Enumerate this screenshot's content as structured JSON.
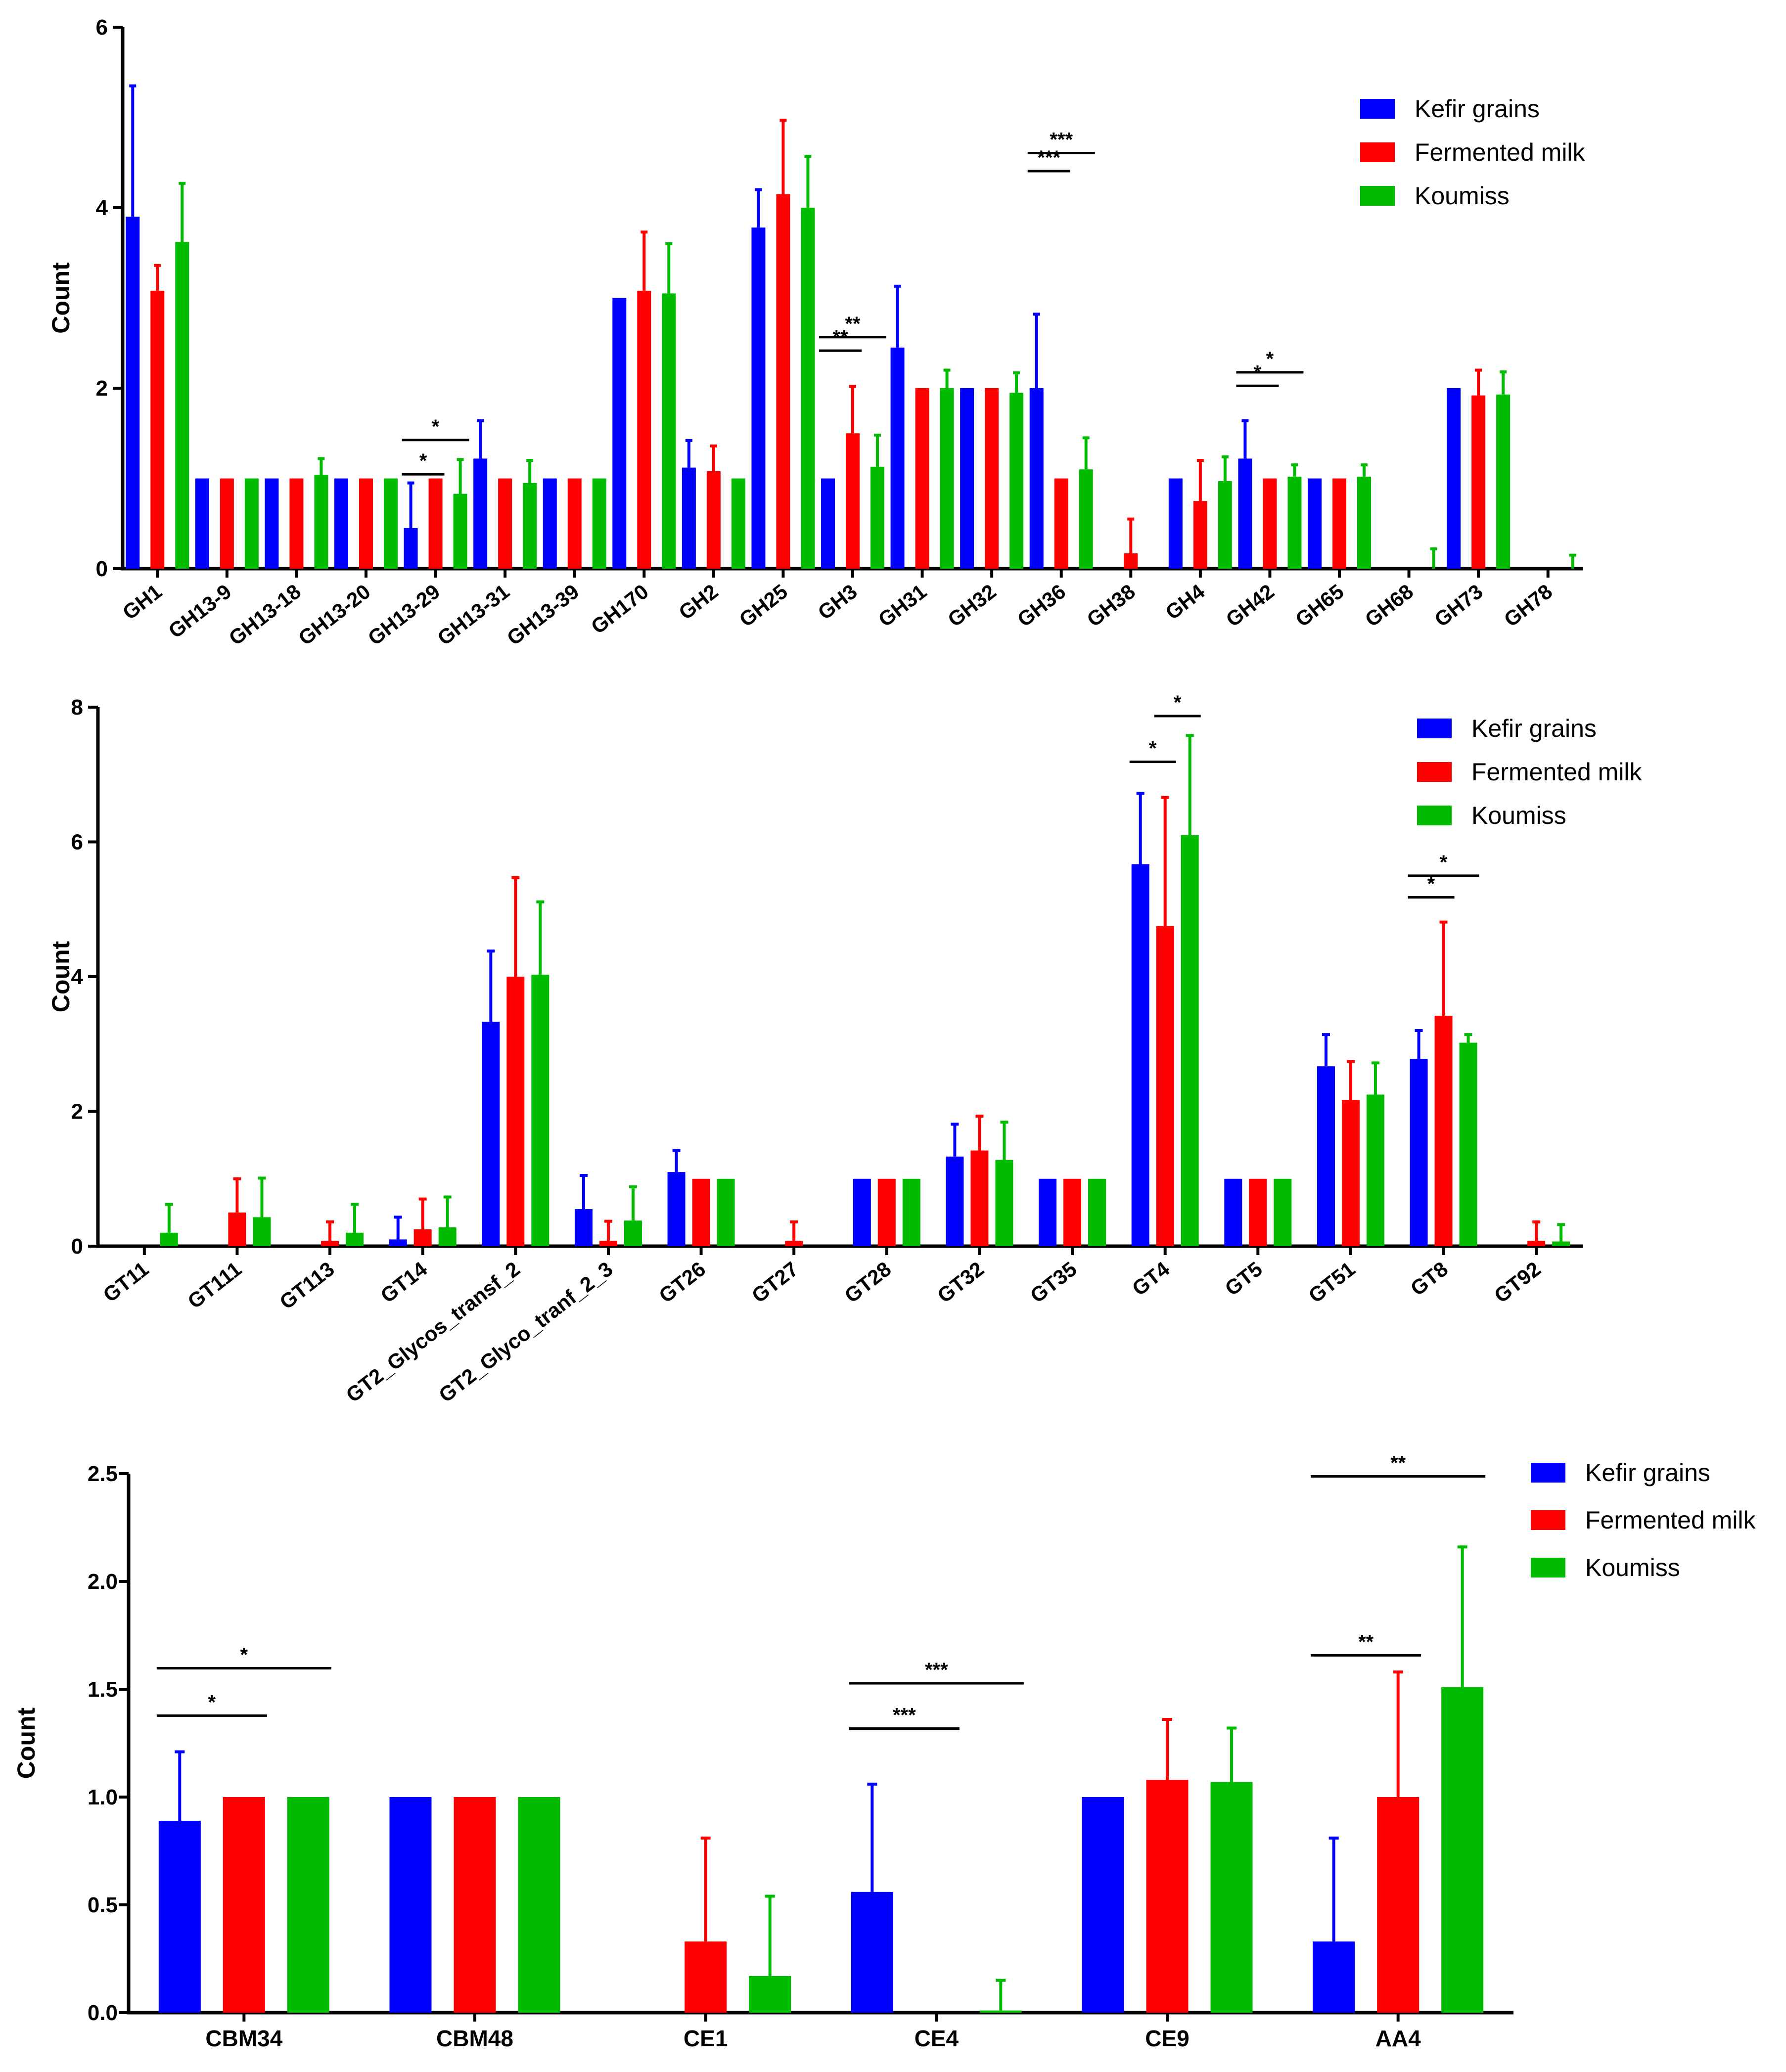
{
  "colors": {
    "Kefir grains": "#0000ff",
    "Fermented milk": "#ff0000",
    "Koumiss": "#00bb00"
  },
  "chart_data": [
    {
      "type": "bar",
      "title": "",
      "xlabel": "",
      "ylabel": "Count",
      "ylim": [
        0,
        6
      ],
      "yticks": [
        "0",
        "2",
        "4",
        "6"
      ],
      "legend_position": "top-right",
      "categories": [
        "GH1",
        "GH13-9",
        "GH13-18",
        "GH13-20",
        "GH13-29",
        "GH13-31",
        "GH13-39",
        "GH170",
        "GH2",
        "GH25",
        "GH3",
        "GH31",
        "GH32",
        "GH36",
        "GH38",
        "GH4",
        "GH42",
        "GH65",
        "GH68",
        "GH73",
        "GH78"
      ],
      "series": [
        {
          "name": "Kefir grains",
          "values": [
            3.9,
            1,
            1,
            1,
            0.45,
            1.22,
            1,
            3,
            1.12,
            3.78,
            1,
            2.45,
            2,
            2,
            0,
            1,
            1.22,
            1,
            0,
            2,
            0
          ],
          "errors": [
            1.45,
            0,
            0,
            0,
            0.5,
            0.42,
            0,
            0,
            0.3,
            0.42,
            0,
            0.68,
            0,
            0.82,
            0,
            0,
            0.42,
            0,
            0,
            0,
            0
          ]
        },
        {
          "name": "Fermented milk",
          "values": [
            3.08,
            1,
            1,
            1,
            1,
            1,
            1,
            3.08,
            1.08,
            4.15,
            1.5,
            2,
            2,
            1,
            0.17,
            0.75,
            1,
            1,
            0,
            1.92,
            0
          ],
          "errors": [
            0.28,
            0,
            0,
            0,
            0,
            0,
            0,
            0.65,
            0.28,
            0.82,
            0.52,
            0,
            0,
            0,
            0.38,
            0.45,
            0,
            0,
            0,
            0.28,
            0
          ]
        },
        {
          "name": "Koumiss",
          "values": [
            3.62,
            1,
            1.04,
            1,
            0.83,
            0.95,
            1,
            3.05,
            1,
            4,
            1.13,
            2,
            1.95,
            1.1,
            0,
            0.97,
            1.02,
            1.02,
            0,
            1.93,
            0
          ],
          "errors": [
            0.65,
            0,
            0.18,
            0,
            0.38,
            0.25,
            0,
            0.55,
            0,
            0.57,
            0.35,
            0.2,
            0.22,
            0.35,
            0,
            0.27,
            0.13,
            0.13,
            0.22,
            0.25,
            0.15
          ]
        }
      ],
      "significance": [
        {
          "category": "GH13-29",
          "pair": "Kefir grains vs Fermented milk",
          "label": "*"
        },
        {
          "category": "GH13-29",
          "pair": "Kefir grains vs Koumiss",
          "label": "*"
        },
        {
          "category": "GH3",
          "pair": "Kefir grains vs Fermented milk",
          "label": "**"
        },
        {
          "category": "GH3",
          "pair": "Kefir grains vs Koumiss",
          "label": "**"
        },
        {
          "category": "GH36",
          "pair": "Kefir grains vs Fermented milk",
          "label": "***"
        },
        {
          "category": "GH36",
          "pair": "Kefir grains vs Koumiss",
          "label": "***"
        },
        {
          "category": "GH42",
          "pair": "Kefir grains vs Fermented milk",
          "label": "*"
        },
        {
          "category": "GH42",
          "pair": "Kefir grains vs Koumiss",
          "label": "*"
        }
      ]
    },
    {
      "type": "bar",
      "title": "",
      "xlabel": "",
      "ylabel": "Count",
      "ylim": [
        0,
        8
      ],
      "yticks": [
        "0",
        "2",
        "4",
        "6",
        "8"
      ],
      "legend_position": "top-right",
      "categories": [
        "GT11",
        "GT111",
        "GT113",
        "GT14",
        "GT2_Glycos_transf_2",
        "GT2_Glyco_tranf_2_3",
        "GT26",
        "GT27",
        "GT28",
        "GT32",
        "GT35",
        "GT4",
        "GT5",
        "GT51",
        "GT8",
        "GT92"
      ],
      "series": [
        {
          "name": "Kefir grains",
          "values": [
            0,
            0,
            0,
            0.1,
            3.33,
            0.55,
            1.1,
            0,
            1,
            1.33,
            1,
            5.67,
            1,
            2.67,
            2.78,
            0
          ],
          "errors": [
            0,
            0,
            0,
            0.33,
            1.05,
            0.5,
            0.32,
            0,
            0,
            0.48,
            0,
            1.05,
            0,
            0.47,
            0.42,
            0
          ]
        },
        {
          "name": "Fermented milk",
          "values": [
            0,
            0.5,
            0.08,
            0.25,
            4,
            0.08,
            1,
            0.08,
            1,
            1.42,
            1,
            4.75,
            1,
            2.17,
            3.42,
            0.08
          ],
          "errors": [
            0,
            0.5,
            0.28,
            0.45,
            1.47,
            0.29,
            0,
            0.28,
            0,
            0.51,
            0,
            1.91,
            0,
            0.57,
            1.39,
            0.28
          ]
        },
        {
          "name": "Koumiss",
          "values": [
            0.2,
            0.43,
            0.2,
            0.28,
            4.03,
            0.38,
            1,
            0,
            1,
            1.28,
            1,
            6.1,
            1,
            2.25,
            3.02,
            0.07
          ],
          "errors": [
            0.42,
            0.58,
            0.42,
            0.45,
            1.08,
            0.5,
            0,
            0,
            0,
            0.56,
            0,
            1.48,
            0,
            0.47,
            0.12,
            0.25
          ]
        }
      ],
      "significance": [
        {
          "category": "GT4",
          "pair": "Kefir grains vs Fermented milk",
          "label": "*"
        },
        {
          "category": "GT4",
          "pair": "Fermented milk vs Koumiss",
          "label": "*"
        },
        {
          "category": "GT8",
          "pair": "Kefir grains vs Fermented milk",
          "label": "*"
        },
        {
          "category": "GT8",
          "pair": "Kefir grains vs Koumiss",
          "label": "*"
        }
      ]
    },
    {
      "type": "bar",
      "title": "",
      "xlabel": "",
      "ylabel": "Count",
      "ylim": [
        0,
        2.5
      ],
      "yticks": [
        "0.0",
        "0.5",
        "1.0",
        "1.5",
        "2.0",
        "2.5"
      ],
      "legend_position": "top-right",
      "categories": [
        "CBM34",
        "CBM48",
        "CE1",
        "CE4",
        "CE9",
        "AA4"
      ],
      "series": [
        {
          "name": "Kefir grains",
          "values": [
            0.89,
            1,
            0,
            0.56,
            1,
            0.33
          ],
          "errors": [
            0.32,
            0,
            0,
            0.5,
            0,
            0.48
          ]
        },
        {
          "name": "Fermented milk",
          "values": [
            1,
            1,
            0.33,
            0,
            1.08,
            1
          ],
          "errors": [
            0,
            0,
            0.48,
            0,
            0.28,
            0.58
          ]
        },
        {
          "name": "Koumiss",
          "values": [
            1,
            1,
            0.17,
            0.01,
            1.07,
            1.51
          ],
          "errors": [
            0,
            0,
            0.37,
            0.14,
            0.25,
            0.65
          ]
        }
      ],
      "significance": [
        {
          "category": "CBM34",
          "pair": "Kefir grains vs Fermented milk",
          "label": "*"
        },
        {
          "category": "CBM34",
          "pair": "Kefir grains vs Koumiss",
          "label": "*"
        },
        {
          "category": "CE4",
          "pair": "Kefir grains vs Fermented milk",
          "label": "***"
        },
        {
          "category": "CE4",
          "pair": "Kefir grains vs Koumiss",
          "label": "***"
        },
        {
          "category": "AA4",
          "pair": "Kefir grains vs Fermented milk",
          "label": "**"
        },
        {
          "category": "AA4",
          "pair": "Kefir grains vs Koumiss",
          "label": "**"
        }
      ]
    }
  ]
}
